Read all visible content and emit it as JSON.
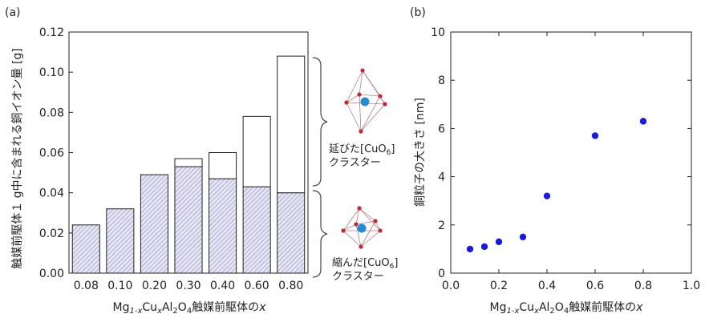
{
  "colors": {
    "hatch": "#8a86c8",
    "hatch_bg": "#e6e6f2",
    "dot": "#1a1ad8",
    "axis": "#222222",
    "atom_center": "#2a8ad0",
    "atom_corner": "#c0283a"
  },
  "panel_a": {
    "tag": "(a)",
    "ylabel": "触媒前駆体１ g中に含まれる銅イオン量 [g]",
    "xlabel_parts": [
      "Mg",
      "1-x",
      "Cu",
      "x",
      "Al",
      "2",
      "O",
      "4",
      "触媒前駆体の",
      "x"
    ],
    "annotations": {
      "upper_line1": "延びた[CuO",
      "upper_sub": "6",
      "upper_close": "]",
      "upper_line2": "クラスター",
      "lower_line1": "縮んだ[CuO",
      "lower_sub": "6",
      "lower_close": "]",
      "lower_line2": "クラスター"
    }
  },
  "panel_b": {
    "tag": "(b)",
    "ylabel": "銅粒子の大きさ [nm]",
    "xlabel_parts": [
      "Mg",
      "1-x",
      "Cu",
      "x",
      "Al",
      "2",
      "O",
      "4",
      "触媒前駆体の",
      "x"
    ]
  },
  "chart_data": [
    {
      "type": "bar",
      "stacked": true,
      "categories": [
        "0.08",
        "0.10",
        "0.20",
        "0.30",
        "0.40",
        "0.60",
        "0.80"
      ],
      "series": [
        {
          "values": [
            0.024,
            0.032,
            0.049,
            0.053,
            0.047,
            0.043,
            0.04
          ],
          "style": "hatched"
        },
        {
          "values": [
            0.0,
            0.0,
            0.0,
            0.004,
            0.013,
            0.035,
            0.068
          ],
          "style": "open"
        }
      ],
      "ylim": [
        0,
        0.12
      ],
      "yticks": [
        "0.00",
        "0.02",
        "0.04",
        "0.06",
        "0.08",
        "0.10",
        "0.12"
      ]
    },
    {
      "type": "scatter",
      "x": [
        0.08,
        0.14,
        0.2,
        0.3,
        0.4,
        0.6,
        0.8
      ],
      "y": [
        1.0,
        1.1,
        1.3,
        1.5,
        3.2,
        5.7,
        6.3
      ],
      "xlim": [
        0,
        1.0
      ],
      "ylim": [
        0,
        10
      ],
      "xticks": [
        "0.0",
        "0.2",
        "0.4",
        "0.6",
        "0.8",
        "1.0"
      ],
      "yticks": [
        "0",
        "2",
        "4",
        "6",
        "8",
        "10"
      ]
    }
  ]
}
